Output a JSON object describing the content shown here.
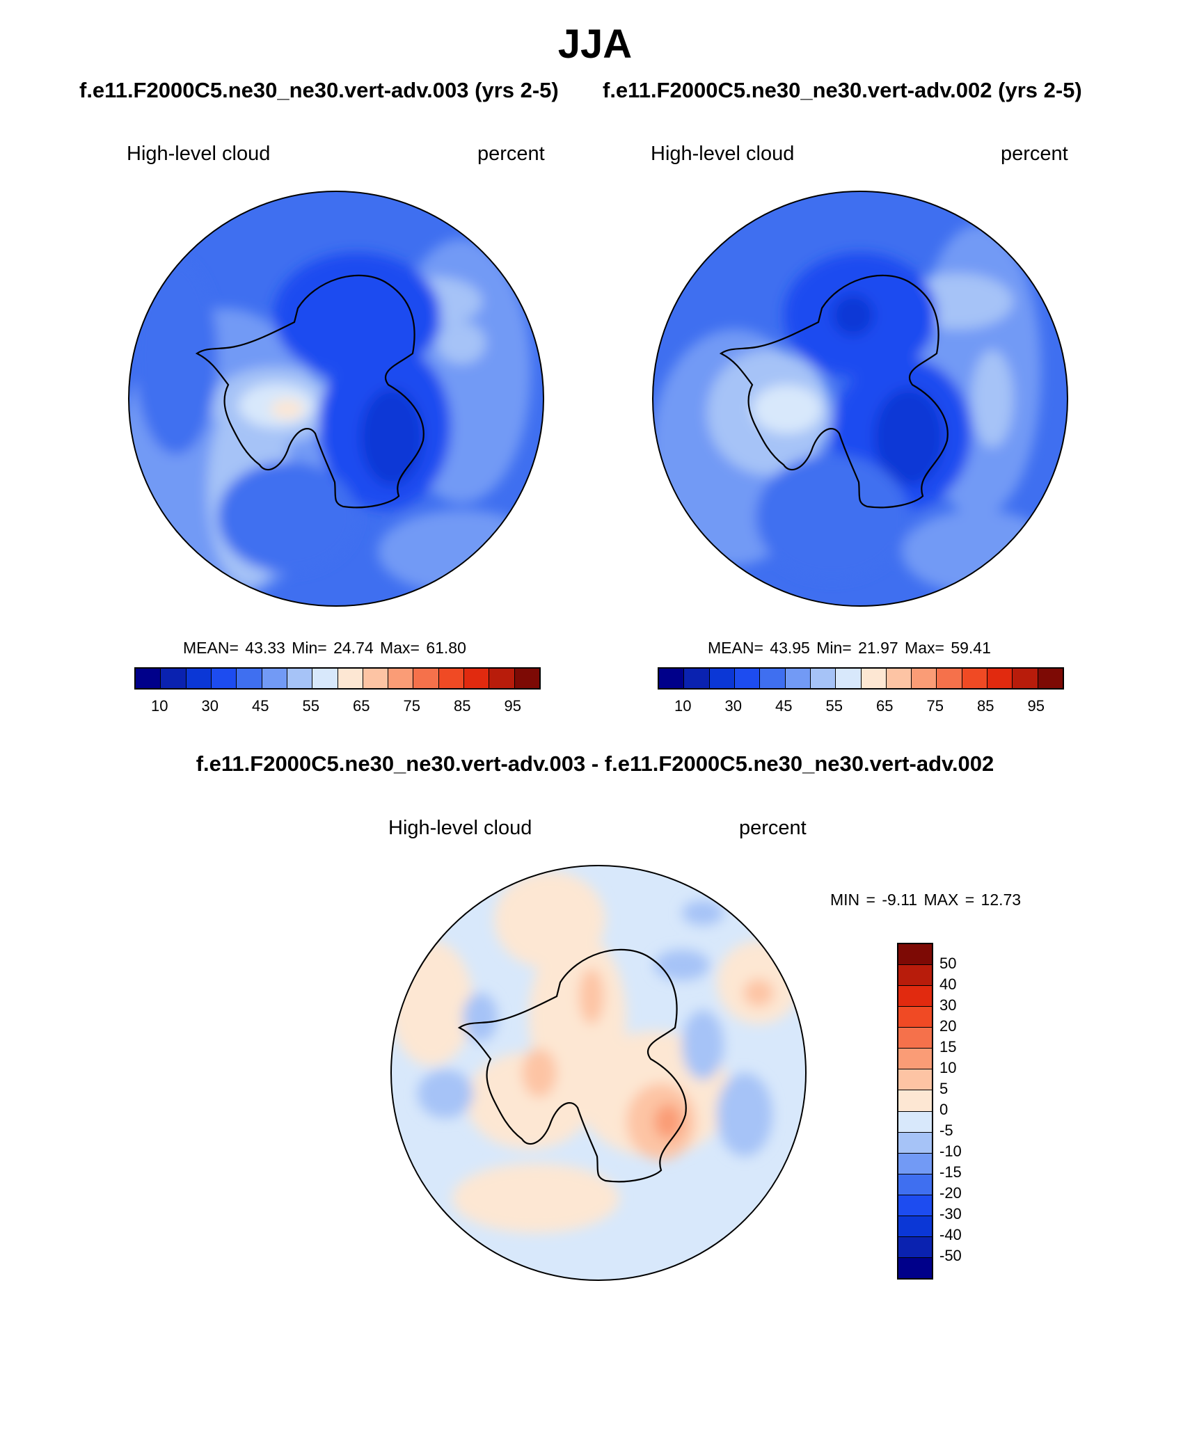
{
  "figure": {
    "title": "JJA",
    "case1_title": "f.e11.F2000C5.ne30_ne30.vert-adv.003 (yrs 2-5)",
    "case2_title": "f.e11.F2000C5.ne30_ne30.vert-adv.002 (yrs 2-5)",
    "diff_title": "f.e11.F2000C5.ne30_ne30.vert-adv.003 - f.e11.F2000C5.ne30_ne30.vert-adv.002"
  },
  "panels": [
    {
      "variable": "High-level cloud",
      "units": "percent",
      "stats": "MEAN=  43.33  Min=  24.74  Max=  61.80",
      "mean": 43.33,
      "min": 24.74,
      "max": 61.8
    },
    {
      "variable": "High-level cloud",
      "units": "percent",
      "stats": "MEAN=  43.95  Min=  21.97  Max=  59.41",
      "mean": 43.95,
      "min": 21.97,
      "max": 59.41
    }
  ],
  "diff_panel": {
    "variable": "High-level cloud",
    "units": "percent",
    "stats": "MIN =  -9.11 MAX =  12.73",
    "min": -9.11,
    "max": 12.73
  },
  "colorbar_main": {
    "colors": [
      "#00008a",
      "#0a22b0",
      "#0b37d6",
      "#1d4cf0",
      "#3f6ff0",
      "#729af5",
      "#a6c3f7",
      "#d8e8fb",
      "#fde7d3",
      "#fdc4a4",
      "#fa9c76",
      "#f5714b",
      "#f04a24",
      "#e12a0f",
      "#b81c0b",
      "#7d0a05"
    ],
    "tick_labels": [
      "10",
      "30",
      "45",
      "55",
      "65",
      "75",
      "85",
      "95"
    ]
  },
  "colorbar_diff": {
    "colors_top_to_bottom": [
      "#7d0a05",
      "#b81c0b",
      "#e12a0f",
      "#f04a24",
      "#f5714b",
      "#fa9c76",
      "#fdc4a4",
      "#fde7d3",
      "#d8e8fb",
      "#a6c3f7",
      "#729af5",
      "#3f6ff0",
      "#1d4cf0",
      "#0b37d6",
      "#0a22b0",
      "#00008a"
    ],
    "tick_labels_top_to_bottom": [
      "50",
      "40",
      "30",
      "20",
      "15",
      "10",
      "5",
      "0",
      "-5",
      "-10",
      "-15",
      "-20",
      "-30",
      "-40",
      "-50"
    ]
  }
}
